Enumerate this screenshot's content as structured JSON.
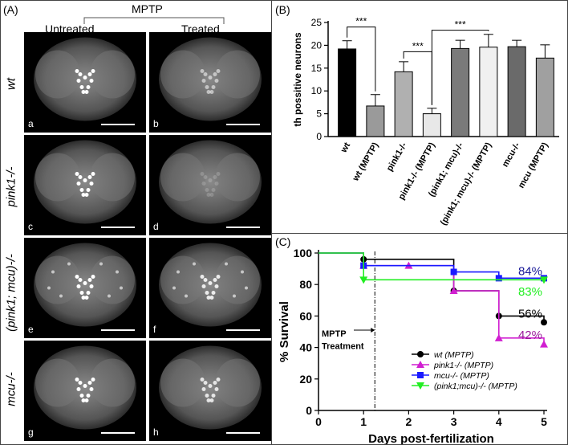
{
  "panel_a": {
    "label": "(A)",
    "header": "MPTP",
    "col_untreated": "Untreated",
    "col_treated": "Treated",
    "rows": [
      "wt",
      "pink1-/-",
      "(pink1; mcu)-/-",
      "mcu-/-"
    ],
    "tags": [
      "a",
      "b",
      "c",
      "d",
      "e",
      "f",
      "g",
      "h"
    ]
  },
  "panel_b": {
    "label": "(B)"
  },
  "panel_c": {
    "label": "(C)"
  },
  "chart_data": [
    {
      "type": "bar",
      "ylabel": "th possitive neurons",
      "ylim": [
        0,
        25
      ],
      "yticks": [
        0,
        5,
        10,
        15,
        20,
        25
      ],
      "categories": [
        "wt",
        "wt (MPTP)",
        "pink1-/-",
        "pink1-/- (MPTP)",
        "(pink1; mcu)-/-",
        "(pink1; mcu)-/- (MPTP)",
        "mcu-/-",
        "mcu (MPTP)"
      ],
      "values": [
        19.2,
        6.7,
        14.2,
        5.0,
        19.3,
        19.6,
        19.7,
        17.2
      ],
      "errors": [
        1.8,
        2.5,
        2.2,
        1.2,
        1.8,
        2.8,
        1.4,
        2.9
      ],
      "colors": [
        "#000000",
        "#9a9a9a",
        "#b0b0b0",
        "#e8e8e8",
        "#7a7a7a",
        "#f0f0f0",
        "#6a6a6a",
        "#a0a0a0"
      ],
      "significance": [
        "***",
        "***",
        "***"
      ]
    },
    {
      "type": "line",
      "xlabel": "Days post-fertilization",
      "ylabel": "% Survival",
      "xlim": [
        0,
        5
      ],
      "ylim": [
        0,
        100
      ],
      "xticks": [
        0,
        1,
        2,
        3,
        4,
        5
      ],
      "yticks": [
        0,
        20,
        40,
        60,
        80,
        100
      ],
      "annotation": "MPTP Treatment",
      "treatment_day": 1.25,
      "series": [
        {
          "name": "wt (MPTP)",
          "color": "#000000",
          "marker": "circle",
          "x": [
            0,
            1,
            3,
            4,
            5
          ],
          "y": [
            100,
            96,
            76,
            60,
            56
          ]
        },
        {
          "name": "pink1-/- (MPTP)",
          "color": "#d11fd1",
          "marker": "triangle-up",
          "x": [
            0,
            1,
            2,
            3,
            4,
            5
          ],
          "y": [
            100,
            92,
            92,
            76,
            46,
            42
          ]
        },
        {
          "name": "mcu-/- (MPTP)",
          "color": "#1a1aff",
          "marker": "square",
          "x": [
            0,
            1,
            3,
            4,
            5
          ],
          "y": [
            100,
            92,
            88,
            84,
            84
          ]
        },
        {
          "name": "(pink1;mcu)-/- (MPTP)",
          "color": "#22ee22",
          "marker": "triangle-down",
          "x": [
            0,
            1,
            5
          ],
          "y": [
            100,
            83,
            83
          ]
        }
      ],
      "end_labels": [
        {
          "text": "84%",
          "color": "#1a1a99",
          "y": 84
        },
        {
          "text": "83%",
          "color": "#22ee22",
          "y": 83
        },
        {
          "text": "56%",
          "color": "#000000",
          "y": 56
        },
        {
          "text": "42%",
          "color": "#9a1a9a",
          "y": 42
        }
      ]
    }
  ]
}
